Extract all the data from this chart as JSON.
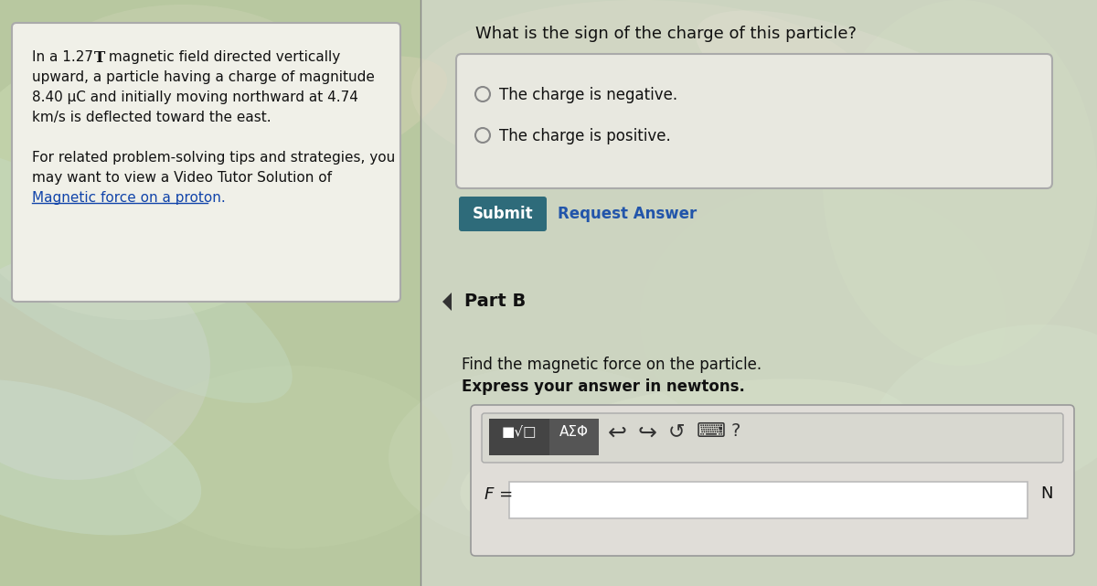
{
  "bg_color": "#c8d8b0",
  "left_bg_color": "#b8c8a0",
  "right_bg_color": "#ccd4c0",
  "left_panel_facecolor": "#f0f0e8",
  "left_panel_edgecolor": "#aaaaaa",
  "problem_line1a": "In a 1.27 ",
  "problem_line1b": "T",
  "problem_line1c": " magnetic field directed vertically",
  "problem_line2": "upward, a particle having a charge of magnitude",
  "problem_line3": "8.40 μC and initially moving northward at 4.74",
  "problem_line4": "km/s is deflected toward the east.",
  "tip_line1": "For related problem-solving tips and strategies, you",
  "tip_line2": "may want to view a Video Tutor Solution of",
  "tip_link": "Magnetic force on a proton.",
  "tip_link_color": "#1144aa",
  "question_text": "What is the sign of the charge of this particle?",
  "choice1": "The charge is negative.",
  "choice2": "The charge is positive.",
  "radio_box_bg": "#e8e8e0",
  "radio_box_edge": "#aaaaaa",
  "submit_btn_color": "#2e6b7a",
  "submit_btn_text": "Submit",
  "request_answer_text": "Request Answer",
  "request_answer_color": "#2255aa",
  "part_b_text": "Part B",
  "find_text": "Find the magnetic force on the particle.",
  "express_text": "Express your answer in newtons.",
  "toolbar_btn_dark": "#444444",
  "toolbar_btn_mid": "#555555",
  "toolbar_bg": "#d8d8d0",
  "toolbar_edge": "#aaaaaa",
  "math_btn_text": "■√□",
  "asf_btn_text": "ΑΣΦ",
  "f_label": "F =",
  "n_label": "N",
  "input_box_bg": "#f5f2ec",
  "input_field_bg": "#ffffff",
  "text_color": "#111111",
  "divider_color": "#888888",
  "swirl_ellipses": [
    [
      150,
      200,
      400,
      300,
      "#d8e8c0",
      0.3,
      0
    ],
    [
      80,
      400,
      300,
      250,
      "#e0d8f0",
      0.25,
      0
    ],
    [
      320,
      500,
      350,
      200,
      "#c8d8b0",
      0.2,
      0
    ],
    [
      700,
      100,
      500,
      200,
      "#e8e0d0",
      0.2,
      0
    ],
    [
      900,
      350,
      400,
      300,
      "#d0dcc0",
      0.2,
      0
    ],
    [
      600,
      500,
      350,
      200,
      "#e0e8d8",
      0.15,
      0
    ],
    [
      200,
      80,
      300,
      150,
      "#f0e8d8",
      0.15,
      0
    ],
    [
      1050,
      200,
      300,
      400,
      "#d8e8c8",
      0.2,
      0
    ],
    [
      100,
      300,
      500,
      150,
      "#c8e0d0",
      0.3,
      30
    ],
    [
      300,
      150,
      400,
      120,
      "#e8d8c0",
      0.25,
      -20
    ],
    [
      50,
      500,
      350,
      150,
      "#d0e8e0",
      0.3,
      15
    ],
    [
      750,
      500,
      500,
      150,
      "#e8f0d8",
      0.2,
      -10
    ],
    [
      950,
      100,
      400,
      120,
      "#f0e8e0",
      0.2,
      20
    ],
    [
      1100,
      450,
      300,
      180,
      "#d8e8d0",
      0.25,
      -15
    ]
  ]
}
